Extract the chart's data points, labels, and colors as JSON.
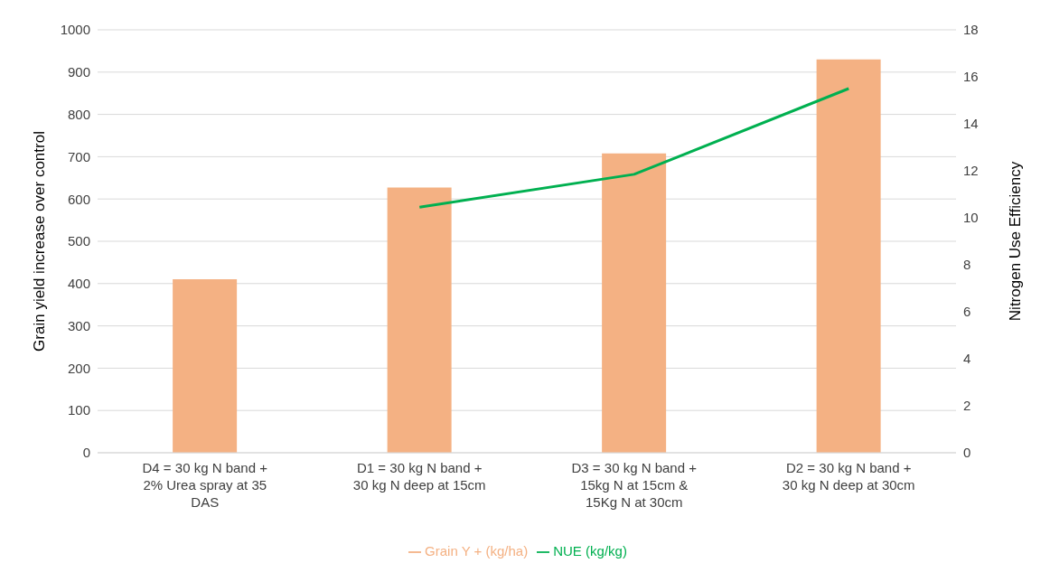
{
  "chart_data": {
    "type": "bar",
    "ylabel": "Grain yield increase over control",
    "y2label": "Nitrogen Use Efficiency",
    "categories": [
      "D4 = 30 kg N band + 2% Urea spray at 35 DAS",
      "D1 = 30 kg N band + 30 kg N deep at 15cm",
      "D3 = 30 kg N band + 15kg N at 15cm & 15Kg N at 30cm",
      "D2 = 30 kg N band + 30 kg N deep at 30cm"
    ],
    "series": [
      {
        "name": "Grain Y + (kg/ha)",
        "color": "#f4b183",
        "values": [
          410,
          627,
          708,
          930
        ]
      },
      {
        "name": "NUE (kg/kg)",
        "type": "line",
        "axis": "y2",
        "color": "#00b050",
        "values": [
          null,
          10.45,
          11.85,
          15.5
        ]
      }
    ],
    "ylim": [
      0,
      1000
    ],
    "yticks": [
      0,
      100,
      200,
      300,
      400,
      500,
      600,
      700,
      800,
      900,
      1000
    ],
    "y2lim": [
      0,
      18
    ],
    "y2ticks": [
      0,
      2,
      4,
      6,
      8,
      10,
      12,
      14,
      16,
      18
    ],
    "grid": "y",
    "legend": "bottom",
    "marker": "none"
  }
}
